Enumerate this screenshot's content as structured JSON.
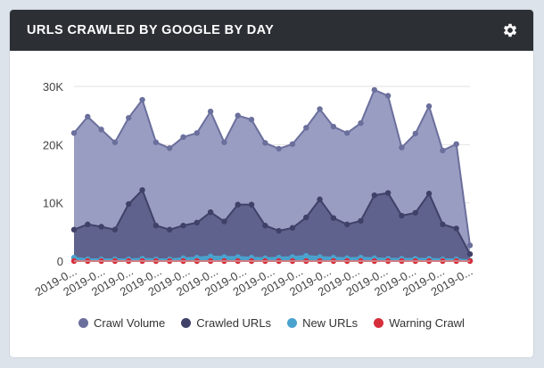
{
  "panel": {
    "title": "URLS CRAWLED BY GOOGLE BY DAY",
    "settings_icon": "gear-icon"
  },
  "chart_data": {
    "type": "area",
    "title": "URLS CRAWLED BY GOOGLE BY DAY",
    "xlabel": "",
    "ylabel": "",
    "ylim": [
      0,
      30000
    ],
    "y_ticks": [
      "0",
      "10K",
      "20K",
      "30K"
    ],
    "x_tick_labels": [
      "2019-0...",
      "2019-0...",
      "2019-0...",
      "2019-0...",
      "2019-0...",
      "2019-0...",
      "2019-0...",
      "2019-0...",
      "2019-0...",
      "2019-0...",
      "2019-0...",
      "2019-0...",
      "2019-0...",
      "2019-0...",
      "2019-0..."
    ],
    "grid": true,
    "legend_position": "bottom",
    "series": [
      {
        "name": "Crawl Volume",
        "color": "#6a6f9c",
        "fill": "#9a9dc2",
        "values": [
          22000,
          24800,
          22600,
          20400,
          24600,
          27700,
          20400,
          19400,
          21300,
          22000,
          25700,
          20400,
          25000,
          24300,
          20300,
          19300,
          20100,
          22900,
          26100,
          23100,
          22000,
          23700,
          29400,
          28400,
          19500,
          21900,
          26600,
          19000,
          20100,
          2700
        ]
      },
      {
        "name": "Crawled URLs",
        "color": "#3f4168",
        "fill": "#5e628c",
        "values": [
          5400,
          6300,
          5900,
          5400,
          9800,
          12200,
          6100,
          5400,
          6100,
          6600,
          8400,
          6800,
          9700,
          9700,
          6100,
          5200,
          5700,
          7500,
          10600,
          7400,
          6300,
          6900,
          11300,
          11700,
          7800,
          8300,
          11600,
          6300,
          5600,
          1200
        ]
      },
      {
        "name": "New URLs",
        "color": "#4aa3cf",
        "fill": "#4aa3cf",
        "values": [
          600,
          300,
          300,
          300,
          300,
          400,
          300,
          300,
          500,
          600,
          800,
          700,
          700,
          600,
          500,
          600,
          700,
          900,
          700,
          600,
          500,
          600,
          500,
          400,
          400,
          400,
          400,
          300,
          300,
          100
        ]
      },
      {
        "name": "Warning Crawl",
        "color": "#d62f3b",
        "fill": "#d62f3b",
        "values": [
          0,
          0,
          0,
          0,
          0,
          0,
          0,
          0,
          0,
          0,
          0,
          0,
          0,
          0,
          0,
          0,
          0,
          0,
          0,
          0,
          0,
          0,
          0,
          0,
          0,
          0,
          0,
          0,
          0,
          0
        ]
      }
    ]
  }
}
